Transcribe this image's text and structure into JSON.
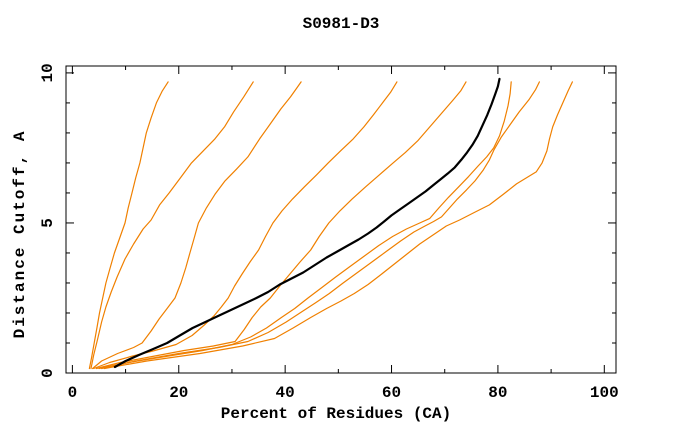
{
  "window": {
    "background": "#ffffff"
  },
  "chart_data": {
    "type": "line",
    "title": "S0981-D3",
    "xlabel": "Percent of Residues (CA)",
    "ylabel": "Distance Cutoff, A",
    "xlim": [
      -1.2,
      102.2
    ],
    "ylim": [
      0,
      10.23
    ],
    "grid": false,
    "legend": "none",
    "x_axis": {
      "major_tick_values": [
        0,
        20,
        40,
        60,
        80,
        100
      ],
      "major_tick_labels": [
        "0",
        "20",
        "40",
        "60",
        "80",
        "100"
      ],
      "minor_tick_values": [
        10,
        30,
        50,
        70,
        90
      ]
    },
    "y_axis": {
      "major_tick_values": [
        0,
        5,
        10
      ],
      "major_tick_labels": [
        "0",
        "5",
        "10"
      ],
      "minor_tick_values": [
        1,
        2,
        3,
        4,
        6,
        7,
        8,
        9
      ]
    },
    "colors": {
      "reference_models": "#f08000",
      "highlighted_model": "#000000"
    },
    "series": [
      {
        "name": "orange-model-1",
        "color": "#f08000",
        "width": 1.2,
        "points": [
          [
            3.2,
            0.15
          ],
          [
            3.6,
            0.5
          ],
          [
            4.1,
            1.0
          ],
          [
            4.6,
            1.5
          ],
          [
            5.1,
            2.0
          ],
          [
            5.7,
            2.5
          ],
          [
            6.3,
            3.0
          ],
          [
            7.1,
            3.5
          ],
          [
            7.9,
            4.0
          ],
          [
            8.9,
            4.5
          ],
          [
            9.9,
            5.0
          ],
          [
            10.5,
            5.5
          ],
          [
            11.2,
            6.0
          ],
          [
            11.9,
            6.5
          ],
          [
            12.7,
            7.0
          ],
          [
            13.3,
            7.5
          ],
          [
            13.9,
            8.0
          ],
          [
            14.8,
            8.5
          ],
          [
            15.8,
            9.0
          ],
          [
            16.9,
            9.4
          ],
          [
            18.0,
            9.7
          ]
        ]
      },
      {
        "name": "orange-model-2",
        "color": "#f08000",
        "width": 1.2,
        "points": [
          [
            3.5,
            0.15
          ],
          [
            4.0,
            0.6
          ],
          [
            4.7,
            1.1
          ],
          [
            5.5,
            1.7
          ],
          [
            6.3,
            2.2
          ],
          [
            7.3,
            2.7
          ],
          [
            8.4,
            3.2
          ],
          [
            9.9,
            3.8
          ],
          [
            11.5,
            4.3
          ],
          [
            13.3,
            4.8
          ],
          [
            14.8,
            5.1
          ],
          [
            16.4,
            5.6
          ],
          [
            18.2,
            6.0
          ],
          [
            20.3,
            6.5
          ],
          [
            22.4,
            7.0
          ],
          [
            24.6,
            7.4
          ],
          [
            26.8,
            7.8
          ],
          [
            28.6,
            8.2
          ],
          [
            30.3,
            8.7
          ],
          [
            32.2,
            9.2
          ],
          [
            34.0,
            9.7
          ]
        ]
      },
      {
        "name": "orange-model-3",
        "color": "#f08000",
        "width": 1.2,
        "points": [
          [
            3.8,
            0.15
          ],
          [
            5.5,
            0.4
          ],
          [
            8.5,
            0.65
          ],
          [
            11.5,
            0.85
          ],
          [
            13.1,
            1.0
          ],
          [
            14.8,
            1.4
          ],
          [
            16.3,
            1.8
          ],
          [
            17.8,
            2.15
          ],
          [
            19.3,
            2.5
          ],
          [
            20.4,
            3.0
          ],
          [
            21.3,
            3.5
          ],
          [
            22.1,
            4.0
          ],
          [
            22.9,
            4.5
          ],
          [
            23.7,
            5.0
          ],
          [
            25.2,
            5.5
          ],
          [
            26.8,
            5.95
          ],
          [
            28.7,
            6.4
          ],
          [
            30.9,
            6.8
          ],
          [
            33.0,
            7.2
          ],
          [
            35.2,
            7.8
          ],
          [
            37.2,
            8.3
          ],
          [
            39.2,
            8.8
          ],
          [
            41.0,
            9.2
          ],
          [
            42.2,
            9.5
          ],
          [
            43.0,
            9.7
          ]
        ]
      },
      {
        "name": "orange-model-4",
        "color": "#f08000",
        "width": 1.2,
        "points": [
          [
            4.0,
            0.15
          ],
          [
            7.0,
            0.35
          ],
          [
            11.0,
            0.55
          ],
          [
            15.5,
            0.75
          ],
          [
            19.5,
            0.95
          ],
          [
            22.5,
            1.25
          ],
          [
            24.8,
            1.6
          ],
          [
            26.6,
            1.9
          ],
          [
            28.0,
            2.2
          ],
          [
            29.3,
            2.5
          ],
          [
            30.5,
            2.9
          ],
          [
            31.9,
            3.3
          ],
          [
            33.4,
            3.7
          ],
          [
            35.0,
            4.1
          ],
          [
            36.3,
            4.55
          ],
          [
            37.7,
            5.0
          ],
          [
            39.4,
            5.4
          ],
          [
            41.4,
            5.8
          ],
          [
            43.6,
            6.2
          ],
          [
            45.9,
            6.6
          ],
          [
            48.1,
            7.0
          ],
          [
            50.4,
            7.4
          ],
          [
            52.8,
            7.8
          ],
          [
            54.8,
            8.2
          ],
          [
            56.6,
            8.6
          ],
          [
            58.3,
            9.0
          ],
          [
            59.8,
            9.35
          ],
          [
            61.0,
            9.7
          ]
        ]
      },
      {
        "name": "orange-model-5",
        "color": "#f08000",
        "width": 1.2,
        "points": [
          [
            4.5,
            0.15
          ],
          [
            9.0,
            0.35
          ],
          [
            15.0,
            0.55
          ],
          [
            21.0,
            0.75
          ],
          [
            26.5,
            0.9
          ],
          [
            30.6,
            1.05
          ],
          [
            32.3,
            1.45
          ],
          [
            33.8,
            1.85
          ],
          [
            35.4,
            2.2
          ],
          [
            37.2,
            2.5
          ],
          [
            39.0,
            2.9
          ],
          [
            40.9,
            3.3
          ],
          [
            42.8,
            3.7
          ],
          [
            44.8,
            4.1
          ],
          [
            46.4,
            4.55
          ],
          [
            48.2,
            5.0
          ],
          [
            50.3,
            5.4
          ],
          [
            52.6,
            5.8
          ],
          [
            55.1,
            6.2
          ],
          [
            57.7,
            6.6
          ],
          [
            60.3,
            7.0
          ],
          [
            62.6,
            7.35
          ],
          [
            65.0,
            7.75
          ],
          [
            67.2,
            8.2
          ],
          [
            69.4,
            8.65
          ],
          [
            71.6,
            9.1
          ],
          [
            73.0,
            9.4
          ],
          [
            74.0,
            9.7
          ]
        ]
      },
      {
        "name": "orange-model-6",
        "color": "#f08000",
        "width": 1.2,
        "points": [
          [
            5.0,
            0.15
          ],
          [
            10.5,
            0.35
          ],
          [
            17.5,
            0.55
          ],
          [
            24.5,
            0.75
          ],
          [
            30.0,
            0.95
          ],
          [
            33.5,
            1.2
          ],
          [
            36.5,
            1.5
          ],
          [
            39.3,
            1.85
          ],
          [
            41.8,
            2.15
          ],
          [
            44.3,
            2.5
          ],
          [
            46.9,
            2.85
          ],
          [
            49.5,
            3.2
          ],
          [
            52.2,
            3.55
          ],
          [
            54.9,
            3.9
          ],
          [
            57.6,
            4.25
          ],
          [
            60.2,
            4.55
          ],
          [
            62.8,
            4.8
          ],
          [
            65.3,
            5.0
          ],
          [
            67.2,
            5.15
          ],
          [
            68.9,
            5.5
          ],
          [
            70.7,
            5.85
          ],
          [
            72.6,
            6.2
          ],
          [
            74.5,
            6.55
          ],
          [
            76.3,
            6.9
          ],
          [
            77.9,
            7.2
          ],
          [
            79.2,
            7.5
          ],
          [
            80.3,
            7.9
          ],
          [
            81.2,
            8.4
          ],
          [
            81.9,
            8.9
          ],
          [
            82.3,
            9.3
          ],
          [
            82.5,
            9.7
          ]
        ]
      },
      {
        "name": "orange-model-7",
        "color": "#f08000",
        "width": 1.2,
        "points": [
          [
            5.5,
            0.15
          ],
          [
            12.0,
            0.4
          ],
          [
            20.0,
            0.65
          ],
          [
            27.5,
            0.85
          ],
          [
            33.0,
            1.05
          ],
          [
            36.8,
            1.35
          ],
          [
            40.2,
            1.7
          ],
          [
            43.2,
            2.05
          ],
          [
            45.8,
            2.35
          ],
          [
            48.3,
            2.65
          ],
          [
            50.9,
            3.0
          ],
          [
            53.6,
            3.35
          ],
          [
            56.3,
            3.7
          ],
          [
            59.0,
            4.05
          ],
          [
            61.7,
            4.4
          ],
          [
            64.2,
            4.7
          ],
          [
            66.3,
            4.9
          ],
          [
            67.9,
            5.05
          ],
          [
            69.4,
            5.2
          ],
          [
            70.9,
            5.5
          ],
          [
            72.4,
            5.8
          ],
          [
            74.1,
            6.1
          ],
          [
            75.7,
            6.4
          ],
          [
            77.2,
            6.75
          ],
          [
            78.4,
            7.1
          ],
          [
            79.3,
            7.45
          ],
          [
            80.6,
            7.85
          ],
          [
            82.2,
            8.25
          ],
          [
            84.0,
            8.7
          ],
          [
            85.8,
            9.1
          ],
          [
            87.1,
            9.45
          ],
          [
            87.8,
            9.7
          ]
        ]
      },
      {
        "name": "orange-model-8",
        "color": "#f08000",
        "width": 1.2,
        "points": [
          [
            6.0,
            0.15
          ],
          [
            14.0,
            0.4
          ],
          [
            24.0,
            0.65
          ],
          [
            32.0,
            0.9
          ],
          [
            38.0,
            1.15
          ],
          [
            41.5,
            1.5
          ],
          [
            44.8,
            1.85
          ],
          [
            47.8,
            2.15
          ],
          [
            50.5,
            2.4
          ],
          [
            53.0,
            2.65
          ],
          [
            55.6,
            2.95
          ],
          [
            57.8,
            3.25
          ],
          [
            60.3,
            3.6
          ],
          [
            62.8,
            3.95
          ],
          [
            65.3,
            4.3
          ],
          [
            67.8,
            4.6
          ],
          [
            70.3,
            4.9
          ],
          [
            72.8,
            5.1
          ],
          [
            75.6,
            5.35
          ],
          [
            78.4,
            5.6
          ],
          [
            81.0,
            5.95
          ],
          [
            83.5,
            6.3
          ],
          [
            85.8,
            6.55
          ],
          [
            87.2,
            6.7
          ],
          [
            88.3,
            7.0
          ],
          [
            89.2,
            7.4
          ],
          [
            89.7,
            7.8
          ],
          [
            90.3,
            8.2
          ],
          [
            91.2,
            8.6
          ],
          [
            92.2,
            9.0
          ],
          [
            93.2,
            9.4
          ],
          [
            94.0,
            9.7
          ]
        ]
      },
      {
        "name": "black-model",
        "color": "#000000",
        "width": 2.2,
        "points": [
          [
            8.0,
            0.2
          ],
          [
            10.0,
            0.4
          ],
          [
            12.5,
            0.6
          ],
          [
            15.2,
            0.8
          ],
          [
            17.8,
            1.0
          ],
          [
            20.2,
            1.25
          ],
          [
            22.6,
            1.5
          ],
          [
            25.0,
            1.7
          ],
          [
            27.4,
            1.9
          ],
          [
            29.8,
            2.1
          ],
          [
            32.2,
            2.3
          ],
          [
            34.6,
            2.5
          ],
          [
            36.8,
            2.7
          ],
          [
            39.0,
            2.95
          ],
          [
            41.2,
            3.15
          ],
          [
            43.4,
            3.35
          ],
          [
            45.6,
            3.6
          ],
          [
            47.8,
            3.85
          ],
          [
            49.8,
            4.05
          ],
          [
            51.8,
            4.25
          ],
          [
            53.8,
            4.45
          ],
          [
            55.6,
            4.65
          ],
          [
            57.2,
            4.85
          ],
          [
            58.6,
            5.05
          ],
          [
            60.0,
            5.25
          ],
          [
            61.6,
            5.45
          ],
          [
            63.2,
            5.65
          ],
          [
            64.8,
            5.85
          ],
          [
            66.4,
            6.05
          ],
          [
            67.8,
            6.25
          ],
          [
            69.2,
            6.45
          ],
          [
            70.6,
            6.65
          ],
          [
            71.9,
            6.85
          ],
          [
            73.1,
            7.1
          ],
          [
            74.2,
            7.35
          ],
          [
            75.2,
            7.6
          ],
          [
            76.2,
            7.9
          ],
          [
            77.1,
            8.25
          ],
          [
            78.0,
            8.6
          ],
          [
            78.8,
            8.95
          ],
          [
            79.5,
            9.3
          ],
          [
            80.0,
            9.55
          ],
          [
            80.3,
            9.8
          ]
        ]
      }
    ]
  }
}
